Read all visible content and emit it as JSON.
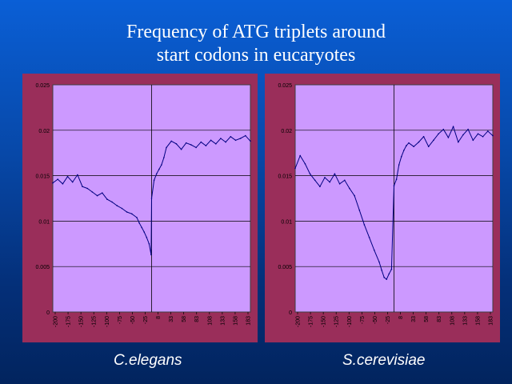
{
  "slide": {
    "title_line1": "Frequency of ATG triplets around",
    "title_line2": "start codons in eucaryotes",
    "caption_left": "C.elegans",
    "caption_right": "S.cerevisiae"
  },
  "colors": {
    "background_top": "#0a5fd6",
    "background_bottom": "#02245e",
    "panel_frame": "#9a2e5a",
    "plot_area": "#cc99ff",
    "series_line": "#000080",
    "gridline": "#000000"
  },
  "chart_data": [
    {
      "type": "line",
      "title": "",
      "xlabel": "",
      "ylabel": "",
      "ylim": [
        0,
        0.025
      ],
      "xlim": [
        -200,
        200
      ],
      "grid": true,
      "legend": "none",
      "yticks": [
        "0",
        "0.005",
        "0.01",
        "0.015",
        "0.02",
        "0.025"
      ],
      "xticks": [
        "-200",
        "-175",
        "-150",
        "-125",
        "-100",
        "-75",
        "-50",
        "-25",
        "8",
        "33",
        "58",
        "83",
        "108",
        "133",
        "158",
        "183"
      ],
      "vline_at": 0,
      "series": [
        {
          "x": [
            -200,
            -190,
            -180,
            -170,
            -160,
            -150,
            -140,
            -130,
            -120,
            -110,
            -100,
            -90,
            -80,
            -70,
            -60,
            -50,
            -40,
            -30,
            -25,
            -20,
            -15,
            -10,
            -5,
            -1,
            0,
            5,
            10,
            15,
            20,
            25,
            30,
            40,
            50,
            60,
            70,
            80,
            90,
            100,
            110,
            120,
            130,
            140,
            150,
            160,
            170,
            180,
            190,
            200
          ],
          "y": [
            0.0142,
            0.0146,
            0.0141,
            0.0149,
            0.0143,
            0.0151,
            0.0138,
            0.0136,
            0.0132,
            0.0128,
            0.0131,
            0.0124,
            0.0121,
            0.0117,
            0.0114,
            0.011,
            0.0108,
            0.0104,
            0.0098,
            0.0093,
            0.0088,
            0.0082,
            0.0075,
            0.0063,
            0.0125,
            0.0145,
            0.0152,
            0.0157,
            0.0162,
            0.017,
            0.0181,
            0.0188,
            0.0185,
            0.0179,
            0.0186,
            0.0184,
            0.0181,
            0.0187,
            0.0183,
            0.0189,
            0.0185,
            0.0191,
            0.0187,
            0.0193,
            0.0189,
            0.0191,
            0.0194,
            0.0188
          ]
        }
      ]
    },
    {
      "type": "line",
      "title": "",
      "xlabel": "",
      "ylabel": "",
      "ylim": [
        0,
        0.025
      ],
      "xlim": [
        -200,
        200
      ],
      "grid": true,
      "legend": "none",
      "yticks": [
        "0",
        "0.005",
        "0.01",
        "0.015",
        "0.02",
        "0.025"
      ],
      "xticks": [
        "-200",
        "-175",
        "-150",
        "-125",
        "-100",
        "-75",
        "-50",
        "-25",
        "8",
        "33",
        "58",
        "83",
        "108",
        "133",
        "158",
        "183"
      ],
      "vline_at": 0,
      "series": [
        {
          "x": [
            -200,
            -190,
            -180,
            -170,
            -160,
            -150,
            -140,
            -130,
            -120,
            -110,
            -100,
            -90,
            -80,
            -70,
            -60,
            -50,
            -40,
            -30,
            -25,
            -20,
            -15,
            -10,
            -5,
            0,
            5,
            10,
            15,
            20,
            25,
            30,
            40,
            50,
            60,
            70,
            80,
            90,
            100,
            110,
            120,
            130,
            140,
            150,
            160,
            170,
            180,
            190,
            200
          ],
          "y": [
            0.0158,
            0.0172,
            0.0163,
            0.0152,
            0.0145,
            0.0138,
            0.0148,
            0.0143,
            0.0152,
            0.0141,
            0.0145,
            0.0136,
            0.0128,
            0.0112,
            0.0096,
            0.0082,
            0.0068,
            0.0055,
            0.0046,
            0.0038,
            0.0036,
            0.0042,
            0.0047,
            0.0139,
            0.0146,
            0.0162,
            0.0171,
            0.0178,
            0.0183,
            0.0186,
            0.0182,
            0.0187,
            0.0193,
            0.0182,
            0.0189,
            0.0196,
            0.0201,
            0.0192,
            0.0204,
            0.0187,
            0.0195,
            0.0201,
            0.0189,
            0.0196,
            0.0193,
            0.0199,
            0.0194
          ]
        }
      ]
    }
  ]
}
